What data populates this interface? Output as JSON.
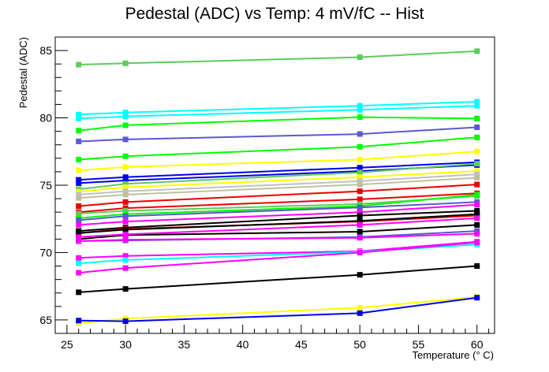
{
  "chart_data": {
    "type": "line",
    "title": "Pedestal (ADC) vs Temp: 4 mV/fC -- Hist",
    "xlabel": "Temperature (° C)",
    "ylabel": "Pedestal (ADC)",
    "xlim": [
      24,
      61.5
    ],
    "ylim": [
      64,
      86
    ],
    "x_ticks": [
      25,
      30,
      35,
      40,
      45,
      50,
      55,
      60
    ],
    "y_ticks": [
      65,
      70,
      75,
      80,
      85
    ],
    "grid": false,
    "legend": "none",
    "x": [
      26,
      30,
      50,
      60
    ],
    "series": [
      {
        "color": "#5acd5a",
        "values": [
          83.95,
          84.05,
          84.5,
          84.95
        ]
      },
      {
        "color": "#00ffff",
        "values": [
          80.25,
          80.4,
          80.9,
          81.2
        ]
      },
      {
        "color": "#00ffff",
        "values": [
          79.95,
          80.1,
          80.6,
          80.9
        ]
      },
      {
        "color": "#00ff00",
        "values": [
          79.05,
          79.45,
          80.05,
          79.95
        ]
      },
      {
        "color": "#5a5ad0",
        "values": [
          78.25,
          78.4,
          78.8,
          79.3
        ]
      },
      {
        "color": "#00ff00",
        "values": [
          76.9,
          77.15,
          77.85,
          78.55
        ]
      },
      {
        "color": "#ffff00",
        "values": [
          76.1,
          76.35,
          76.9,
          77.5
        ]
      },
      {
        "color": "#0000ee",
        "values": [
          75.4,
          75.6,
          76.3,
          76.7
        ]
      },
      {
        "color": "#0000ee",
        "values": [
          75.15,
          75.35,
          76.05,
          76.5
        ]
      },
      {
        "color": "#5acd5a",
        "values": [
          74.7,
          75.1,
          75.95,
          76.6
        ]
      },
      {
        "color": "#ffff00",
        "values": [
          74.5,
          74.85,
          75.6,
          76.05
        ]
      },
      {
        "color": "#c0c0c0",
        "values": [
          74.3,
          74.55,
          75.3,
          75.8
        ]
      },
      {
        "color": "#c0c0a0",
        "values": [
          74.05,
          74.3,
          75.05,
          75.55
        ]
      },
      {
        "color": "#ee0000",
        "values": [
          73.45,
          73.75,
          74.55,
          75.05
        ]
      },
      {
        "color": "#ee0000",
        "values": [
          73.0,
          73.3,
          73.95,
          74.4
        ]
      },
      {
        "color": "#5acd5a",
        "values": [
          72.9,
          73.1,
          73.6,
          74.2
        ]
      },
      {
        "color": "#00ff00",
        "values": [
          72.55,
          72.85,
          73.45,
          74.3
        ]
      },
      {
        "color": "#5a5ad0",
        "values": [
          72.4,
          72.7,
          73.35,
          73.75
        ]
      },
      {
        "color": "#ff00ff",
        "values": [
          72.05,
          72.3,
          73.0,
          73.55
        ]
      },
      {
        "color": "#000000",
        "values": [
          71.6,
          71.85,
          72.75,
          73.1
        ]
      },
      {
        "color": "#ee0000",
        "values": [
          71.45,
          71.75,
          72.3,
          72.75
        ]
      },
      {
        "color": "#000000",
        "values": [
          71.45,
          71.7,
          72.35,
          72.85
        ]
      },
      {
        "color": "#000000",
        "values": [
          71.0,
          71.3,
          71.55,
          72.05
        ]
      },
      {
        "color": "#ff00ff",
        "values": [
          71.15,
          71.35,
          72.05,
          72.55
        ]
      },
      {
        "color": "#5a5ad0",
        "values": [
          70.85,
          70.9,
          71.15,
          71.6
        ]
      },
      {
        "color": "#ff00ff",
        "values": [
          70.85,
          70.95,
          71.1,
          71.4
        ]
      },
      {
        "color": "#ff00ff",
        "values": [
          69.6,
          69.75,
          70.1,
          70.8
        ]
      },
      {
        "color": "#00ffff",
        "values": [
          69.2,
          69.45,
          70.05,
          70.6
        ]
      },
      {
        "color": "#ff00ff",
        "values": [
          68.5,
          68.85,
          70.0,
          70.75
        ]
      },
      {
        "color": "#000000",
        "values": [
          67.05,
          67.3,
          68.35,
          69.0
        ]
      },
      {
        "color": "#ffff00",
        "values": [
          64.75,
          65.1,
          65.9,
          66.7
        ]
      },
      {
        "color": "#0000ee",
        "values": [
          64.95,
          64.9,
          65.5,
          66.65
        ]
      }
    ]
  }
}
